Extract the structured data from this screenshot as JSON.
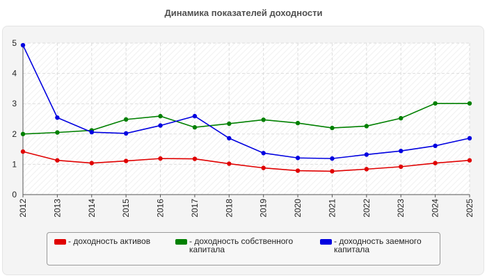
{
  "chart_data": {
    "type": "line",
    "title": "Динамика показателей доходности",
    "x": [
      "2012",
      "2013",
      "2014",
      "2015",
      "2016",
      "2017",
      "2018",
      "2019",
      "2020",
      "2021",
      "2022",
      "2023",
      "2024",
      "2025"
    ],
    "ylim": [
      0,
      5
    ],
    "yticks": [
      0,
      1,
      2,
      3,
      4,
      5
    ],
    "grid": true,
    "legend_position": "bottom",
    "series": [
      {
        "name": "- доходность активов",
        "color": "#e00000",
        "values": [
          1.42,
          1.13,
          1.04,
          1.11,
          1.19,
          1.18,
          1.02,
          0.88,
          0.79,
          0.77,
          0.84,
          0.92,
          1.04,
          1.13
        ]
      },
      {
        "name": "- доходность собственного капитала",
        "color": "#008000",
        "values": [
          2.0,
          2.05,
          2.12,
          2.48,
          2.59,
          2.22,
          2.34,
          2.47,
          2.36,
          2.2,
          2.26,
          2.52,
          3.01,
          3.01
        ]
      },
      {
        "name": "- доходность заемного капитала",
        "color": "#0000e0",
        "values": [
          4.93,
          2.54,
          2.06,
          2.02,
          2.28,
          2.59,
          1.86,
          1.37,
          1.21,
          1.19,
          1.32,
          1.44,
          1.61,
          1.86
        ]
      }
    ]
  }
}
